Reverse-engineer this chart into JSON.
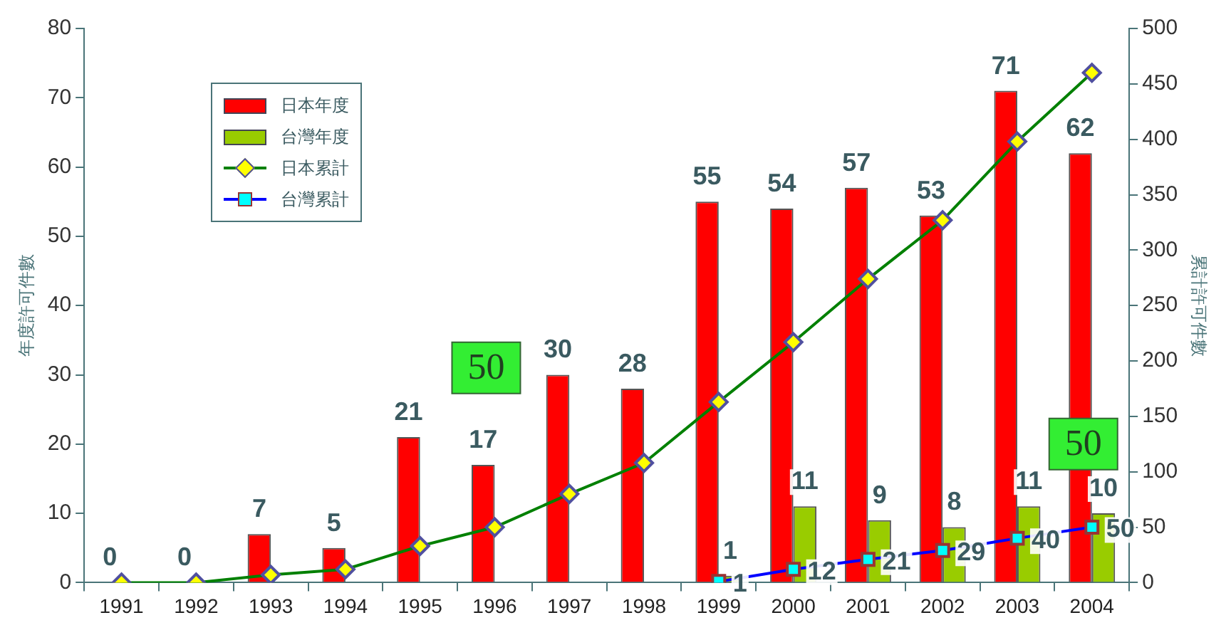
{
  "chart_data": {
    "type": "bar",
    "categories": [
      "1991",
      "1992",
      "1993",
      "1994",
      "1995",
      "1996",
      "1997",
      "1998",
      "1999",
      "2000",
      "2001",
      "2002",
      "2003",
      "2004"
    ],
    "series": [
      {
        "name": "日本年度",
        "color": "#ff0000",
        "values": [
          0,
          0,
          7,
          5,
          21,
          17,
          30,
          28,
          55,
          54,
          57,
          53,
          71,
          62
        ],
        "value_labels": [
          "0",
          "0",
          "7",
          "5",
          "21",
          "17",
          "30",
          "28",
          "55",
          "54",
          "57",
          "53",
          "71",
          "62"
        ]
      },
      {
        "name": "台灣年度",
        "color": "#99cc00",
        "values": [
          null,
          null,
          null,
          null,
          null,
          null,
          null,
          null,
          1,
          11,
          9,
          8,
          11,
          10
        ],
        "value_labels": [
          null,
          null,
          null,
          null,
          null,
          null,
          null,
          null,
          "1",
          "11",
          "9",
          "8",
          "11",
          "10"
        ]
      },
      {
        "name": "日本累計",
        "type": "line",
        "axis": "y2",
        "marker": "diamond",
        "color": "#008000",
        "values": [
          0,
          0,
          7,
          12,
          33,
          50,
          80,
          108,
          163,
          217,
          274,
          327,
          398,
          460
        ]
      },
      {
        "name": "台灣累計",
        "type": "line",
        "axis": "y2",
        "marker": "square",
        "color": "#0000ff",
        "values": [
          null,
          null,
          null,
          null,
          null,
          null,
          null,
          null,
          1,
          12,
          21,
          29,
          40,
          50
        ],
        "value_labels": [
          null,
          null,
          null,
          null,
          null,
          null,
          null,
          null,
          "1",
          "12",
          "21",
          "29",
          "40",
          "50"
        ]
      }
    ],
    "ylabel": "年度許可件數",
    "y2label": "累計許可件數",
    "ylim": [
      0,
      80
    ],
    "yticks": [
      0,
      10,
      20,
      30,
      40,
      50,
      60,
      70,
      80
    ],
    "y2lim": [
      0,
      500
    ],
    "y2ticks": [
      0,
      50,
      100,
      150,
      200,
      250,
      300,
      350,
      400,
      450,
      500
    ],
    "annotations": [
      "50",
      "50"
    ],
    "legend": "top left",
    "grid": false
  }
}
